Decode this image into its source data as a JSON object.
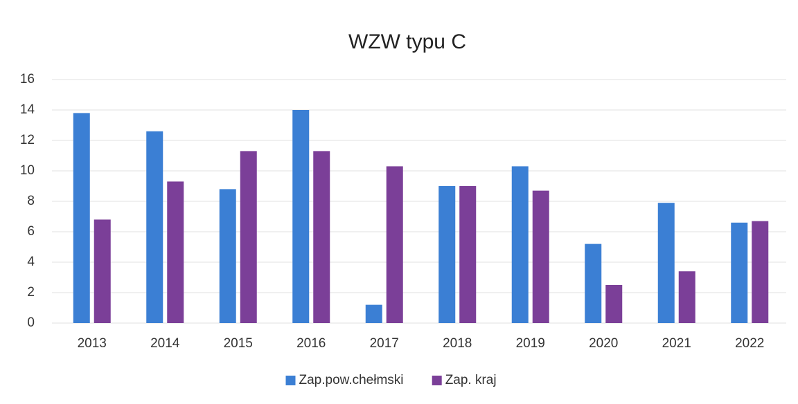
{
  "chart_data": {
    "type": "bar",
    "title": "WZW typu C",
    "categories": [
      "2013",
      "2014",
      "2015",
      "2016",
      "2017",
      "2018",
      "2019",
      "2020",
      "2021",
      "2022"
    ],
    "series": [
      {
        "name": "Zap.pow.chełmski",
        "color": "#3b7fd4",
        "values": [
          13.8,
          12.6,
          8.8,
          14.0,
          1.2,
          9.0,
          10.3,
          5.2,
          7.9,
          6.6
        ]
      },
      {
        "name": "Zap. kraj",
        "color": "#7b3f98",
        "values": [
          6.8,
          9.3,
          11.3,
          11.3,
          10.3,
          9.0,
          8.7,
          2.5,
          3.4,
          6.7
        ]
      }
    ],
    "ylim": [
      0,
      16
    ],
    "yticks": [
      0,
      2,
      4,
      6,
      8,
      10,
      12,
      14,
      16
    ],
    "grid": true,
    "legend": "bottom"
  }
}
